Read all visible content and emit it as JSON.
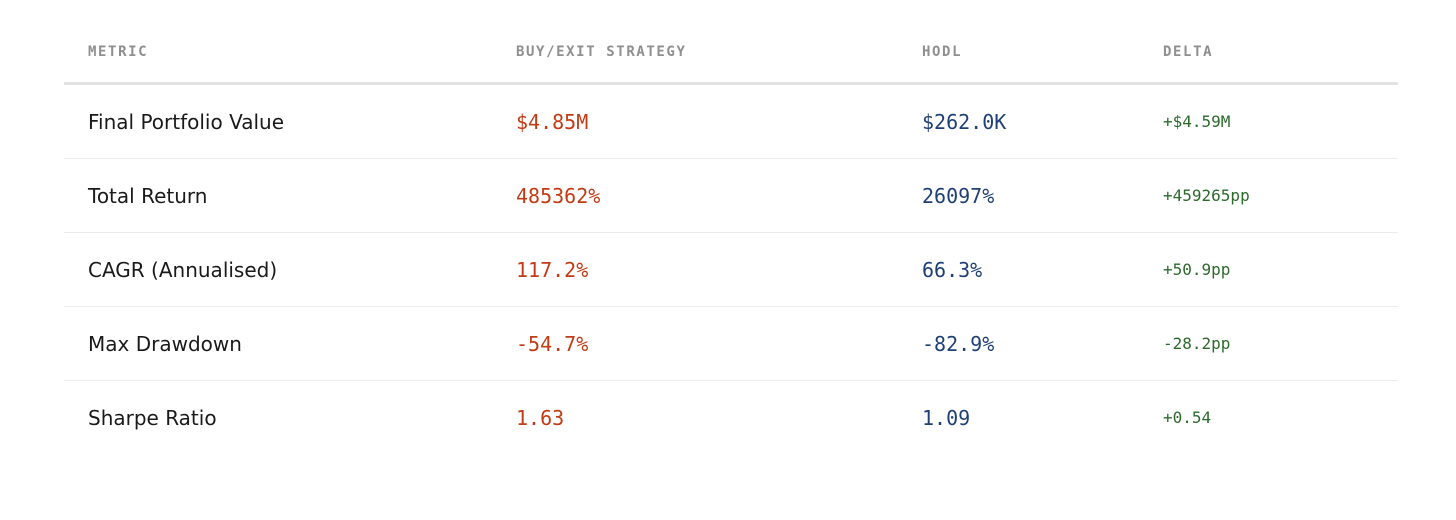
{
  "table": {
    "headers": [
      "METRIC",
      "BUY/EXIT STRATEGY",
      "HODL",
      "DELTA"
    ],
    "rows": [
      {
        "metric": "Final Portfolio Value",
        "strategy": "$4.85M",
        "hodl": "$262.0K",
        "delta": "+$4.59M"
      },
      {
        "metric": "Total Return",
        "strategy": "485362%",
        "hodl": "26097%",
        "delta": "+459265pp"
      },
      {
        "metric": "CAGR (Annualised)",
        "strategy": "117.2%",
        "hodl": "66.3%",
        "delta": "+50.9pp"
      },
      {
        "metric": "Max Drawdown",
        "strategy": "-54.7%",
        "hodl": "-82.9%",
        "delta": "-28.2pp"
      },
      {
        "metric": "Sharpe Ratio",
        "strategy": "1.63",
        "hodl": "1.09",
        "delta": "+0.54"
      }
    ]
  },
  "colors": {
    "strategy": "#c23b14",
    "hodl": "#1f3f77",
    "delta": "#2c6a2c",
    "header": "#8f8f8f"
  }
}
